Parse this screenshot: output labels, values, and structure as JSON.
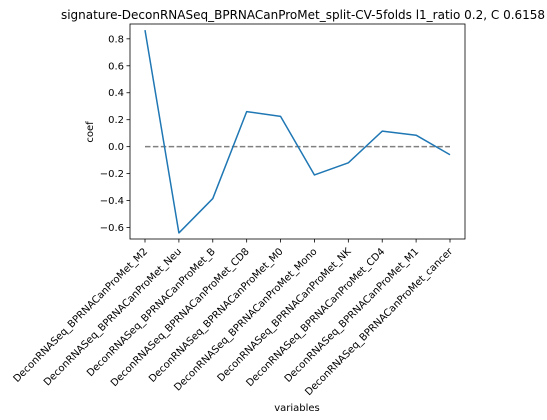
{
  "chart_data": {
    "type": "line",
    "title": "signature-DeconRNASeq_BPRNACanProMet_split-CV-5folds l1_ratio 0.2, C 0.6158",
    "xlabel": "variables",
    "ylabel": "coef",
    "categories": [
      "DeconRNASeq_BPRNACanProMet_M2",
      "DeconRNASeq_BPRNACanProMet_Neu",
      "DeconRNASeq_BPRNACanProMet_B",
      "DeconRNASeq_BPRNACanProMet_CD8",
      "DeconRNASeq_BPRNACanProMet_M0",
      "DeconRNASeq_BPRNACanProMet_Mono",
      "DeconRNASeq_BPRNACanProMet_NK",
      "DeconRNASeq_BPRNACanProMet_CD4",
      "DeconRNASeq_BPRNACanProMet_M1",
      "DeconRNASeq_BPRNACanProMet_cancer"
    ],
    "series": [
      {
        "values": [
          0.865,
          -0.64,
          -0.385,
          0.26,
          0.225,
          -0.21,
          -0.12,
          0.115,
          0.085,
          -0.06
        ],
        "color": "#1f77b4"
      }
    ],
    "reference_line": {
      "y": 0,
      "style": "dashed",
      "color": "#808080"
    },
    "ylim": [
      -0.685,
      0.91
    ],
    "yticks": [
      -0.6,
      -0.4,
      -0.2,
      0.0,
      0.2,
      0.4,
      0.6,
      0.8
    ],
    "ytick_labels": [
      "−0.6",
      "−0.4",
      "−0.2",
      "0.0",
      "0.2",
      "0.4",
      "0.6",
      "0.8"
    ],
    "grid": false,
    "legend": "none"
  }
}
